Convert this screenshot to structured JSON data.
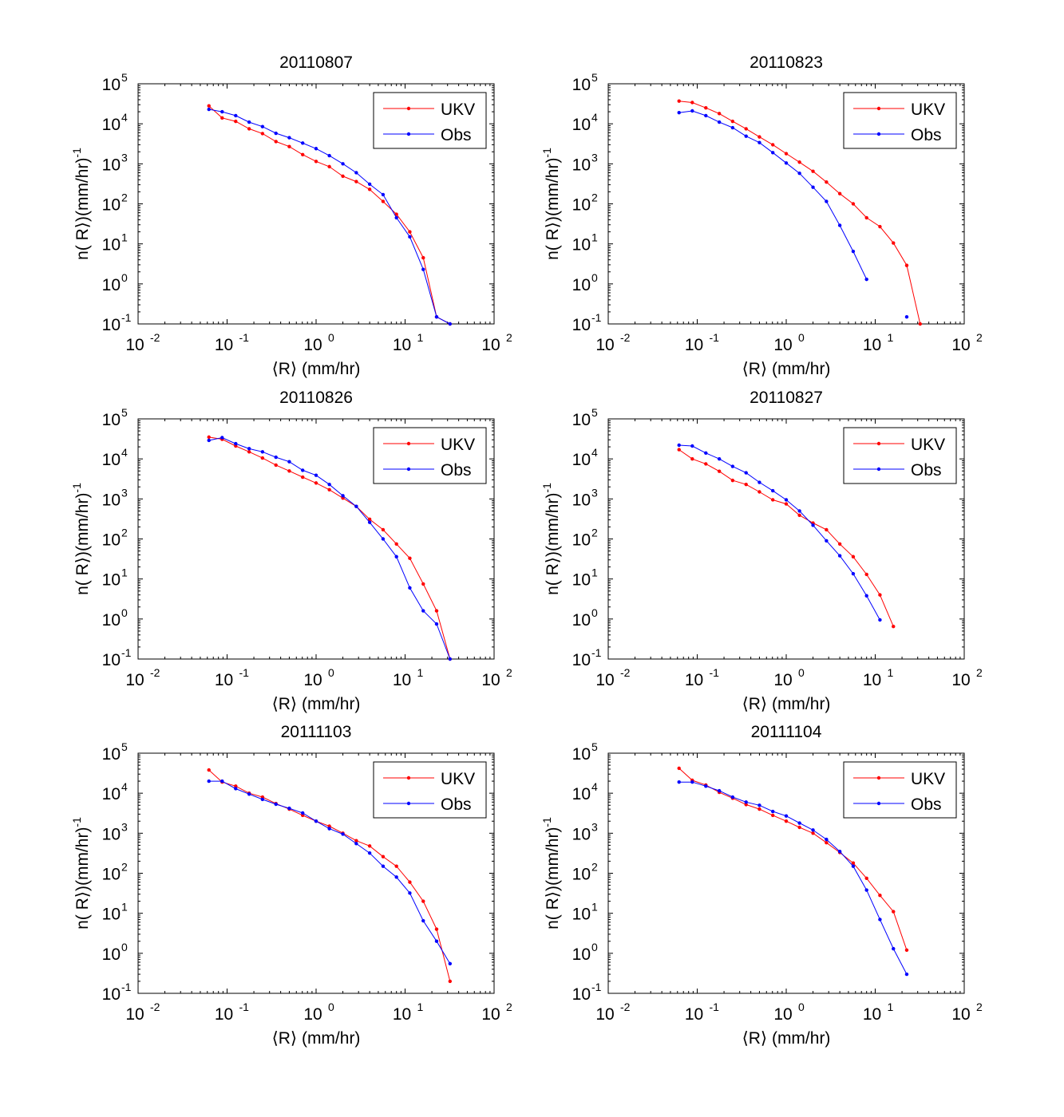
{
  "figure": {
    "x_axis_label": "⟨R⟩ (mm/hr)",
    "y_axis_label_main": "n( R⟩)(mm/hr)",
    "y_axis_label_exp": "-1",
    "x_tick_labels": [
      "10",
      "10",
      "10",
      "10",
      "10"
    ],
    "x_tick_exponents": [
      "-2",
      "-1",
      "0",
      "1",
      "2"
    ],
    "y_tick_labels": [
      "10",
      "10",
      "10",
      "10",
      "10",
      "10",
      "10"
    ],
    "y_tick_exponents": [
      "-1",
      "0",
      "1",
      "2",
      "3",
      "4",
      "5"
    ]
  },
  "colors": {
    "UKV": "#ff0000",
    "Obs": "#0000ff"
  },
  "chart_data": [
    {
      "type": "line",
      "title": "20110807",
      "xscale": "log",
      "yscale": "log",
      "xlim": [
        0.01,
        100
      ],
      "ylim": [
        0.1,
        100000
      ],
      "legend_position": "top-right",
      "series": [
        {
          "name": "UKV",
          "x": [
            0.0625,
            0.088,
            0.125,
            0.177,
            0.25,
            0.354,
            0.5,
            0.707,
            1.0,
            1.41,
            2.0,
            2.83,
            4.0,
            5.66,
            8.0,
            11.3,
            16.0,
            22.6,
            32.0
          ],
          "y": [
            28000,
            14000,
            11500,
            7500,
            5700,
            3600,
            2700,
            1700,
            1150,
            850,
            490,
            360,
            230,
            115,
            55,
            20,
            4.5,
            0.15,
            0.1
          ]
        },
        {
          "name": "Obs",
          "x": [
            0.0625,
            0.088,
            0.125,
            0.177,
            0.25,
            0.354,
            0.5,
            0.707,
            1.0,
            1.41,
            2.0,
            2.83,
            4.0,
            5.66,
            8.0,
            11.3,
            16.0,
            22.6,
            32.0
          ],
          "y": [
            23000,
            20000,
            16000,
            11000,
            8500,
            5800,
            4500,
            3300,
            2400,
            1600,
            1000,
            600,
            310,
            170,
            45,
            15,
            2.3,
            0.15,
            0.1
          ]
        }
      ]
    },
    {
      "type": "line",
      "title": "20110823",
      "xscale": "log",
      "yscale": "log",
      "xlim": [
        0.01,
        100
      ],
      "ylim": [
        0.1,
        100000
      ],
      "legend_position": "top-right",
      "series": [
        {
          "name": "UKV",
          "x": [
            0.0625,
            0.088,
            0.125,
            0.177,
            0.25,
            0.354,
            0.5,
            0.707,
            1.0,
            1.41,
            2.0,
            2.83,
            4.0,
            5.66,
            8.0,
            11.3,
            16.0,
            22.6,
            32.0
          ],
          "y": [
            37000,
            34000,
            25000,
            18000,
            11500,
            7500,
            4700,
            3000,
            1800,
            1100,
            650,
            350,
            180,
            100,
            45,
            27,
            10.5,
            2.9,
            0.1
          ]
        },
        {
          "name": "Obs",
          "x": [
            0.0625,
            0.088,
            0.125,
            0.177,
            0.25,
            0.354,
            0.5,
            0.707,
            1.0,
            1.41,
            2.0,
            2.83,
            4.0,
            5.66,
            8.0
          ],
          "y": [
            19000,
            21000,
            16000,
            11000,
            8000,
            4900,
            3400,
            1900,
            1050,
            580,
            260,
            115,
            29,
            6.5,
            1.3
          ]
        },
        {
          "name": "Obs",
          "x": [
            22.6
          ],
          "y": [
            0.15
          ]
        }
      ]
    },
    {
      "type": "line",
      "title": "20110826",
      "xscale": "log",
      "yscale": "log",
      "xlim": [
        0.01,
        100
      ],
      "ylim": [
        0.1,
        100000
      ],
      "legend_position": "top-right",
      "series": [
        {
          "name": "UKV",
          "x": [
            0.0625,
            0.088,
            0.125,
            0.177,
            0.25,
            0.354,
            0.5,
            0.707,
            1.0,
            1.41,
            2.0,
            2.83,
            4.0,
            5.66,
            8.0,
            11.3,
            16.0,
            22.6,
            32.0
          ],
          "y": [
            35000,
            31000,
            21000,
            15000,
            10500,
            7000,
            5000,
            3500,
            2500,
            1700,
            1050,
            650,
            310,
            170,
            75,
            33,
            7.5,
            1.6,
            0.1
          ]
        },
        {
          "name": "Obs",
          "x": [
            0.0625,
            0.088,
            0.125,
            0.177,
            0.25,
            0.354,
            0.5,
            0.707,
            1.0,
            1.41,
            2.0,
            2.83,
            4.0,
            5.66,
            8.0,
            11.3,
            16.0,
            22.6,
            32.0
          ],
          "y": [
            29000,
            34000,
            24000,
            18000,
            15000,
            11000,
            8500,
            5200,
            3900,
            2300,
            1200,
            650,
            260,
            100,
            36,
            6,
            1.6,
            0.75,
            0.1
          ]
        }
      ]
    },
    {
      "type": "line",
      "title": "20110827",
      "xscale": "log",
      "yscale": "log",
      "xlim": [
        0.01,
        100
      ],
      "ylim": [
        0.1,
        100000
      ],
      "legend_position": "top-right",
      "series": [
        {
          "name": "UKV",
          "x": [
            0.0625,
            0.088,
            0.125,
            0.177,
            0.25,
            0.354,
            0.5,
            0.707,
            1.0,
            1.41,
            2.0,
            2.83,
            4.0,
            5.66,
            8.0,
            11.3,
            16.0
          ],
          "y": [
            17000,
            10000,
            7500,
            4900,
            2900,
            2300,
            1500,
            950,
            750,
            390,
            250,
            170,
            75,
            36,
            13,
            4,
            0.65
          ]
        },
        {
          "name": "Obs",
          "x": [
            0.0625,
            0.088,
            0.125,
            0.177,
            0.25,
            0.354,
            0.5,
            0.707,
            1.0,
            1.41,
            2.0,
            2.83,
            4.0,
            5.66,
            8.0,
            11.3
          ],
          "y": [
            22000,
            21000,
            14000,
            10000,
            6500,
            4500,
            2600,
            1600,
            950,
            500,
            220,
            90,
            38,
            13.5,
            3.8,
            0.95
          ]
        }
      ]
    },
    {
      "type": "line",
      "title": "20111103",
      "xscale": "log",
      "yscale": "log",
      "xlim": [
        0.01,
        100
      ],
      "ylim": [
        0.1,
        100000
      ],
      "legend_position": "top-right",
      "series": [
        {
          "name": "UKV",
          "x": [
            0.0625,
            0.088,
            0.125,
            0.177,
            0.25,
            0.354,
            0.5,
            0.707,
            1.0,
            1.41,
            2.0,
            2.83,
            4.0,
            5.66,
            8.0,
            11.3,
            16.0,
            22.6,
            32.0
          ],
          "y": [
            38000,
            19000,
            15000,
            10000,
            8000,
            5500,
            4000,
            2800,
            2000,
            1500,
            1000,
            650,
            480,
            260,
            150,
            60,
            20,
            4,
            0.2
          ]
        },
        {
          "name": "Obs",
          "x": [
            0.0625,
            0.088,
            0.125,
            0.177,
            0.25,
            0.354,
            0.5,
            0.707,
            1.0,
            1.41,
            2.0,
            2.83,
            4.0,
            5.66,
            8.0,
            11.3,
            16.0,
            22.6,
            32.0
          ],
          "y": [
            20000,
            20000,
            13000,
            9500,
            7000,
            5300,
            4200,
            3200,
            2000,
            1300,
            950,
            550,
            320,
            150,
            80,
            32,
            6.5,
            2,
            0.55
          ]
        }
      ]
    },
    {
      "type": "line",
      "title": "20111104",
      "xscale": "log",
      "yscale": "log",
      "xlim": [
        0.01,
        100
      ],
      "ylim": [
        0.1,
        100000
      ],
      "legend_position": "top-right",
      "series": [
        {
          "name": "UKV",
          "x": [
            0.0625,
            0.088,
            0.125,
            0.177,
            0.25,
            0.354,
            0.5,
            0.707,
            1.0,
            1.41,
            2.0,
            2.83,
            4.0,
            5.66,
            8.0,
            11.3,
            16.0,
            22.6
          ],
          "y": [
            42000,
            21000,
            16000,
            10500,
            7500,
            5200,
            4000,
            2800,
            2000,
            1400,
            1000,
            580,
            330,
            180,
            75,
            28,
            11,
            1.2
          ]
        },
        {
          "name": "Obs",
          "x": [
            0.0625,
            0.088,
            0.125,
            0.177,
            0.25,
            0.354,
            0.5,
            0.707,
            1.0,
            1.41,
            2.0,
            2.83,
            4.0,
            5.66,
            8.0,
            11.3,
            16.0,
            22.6
          ],
          "y": [
            19000,
            19000,
            15000,
            11500,
            8000,
            6000,
            5000,
            3500,
            2700,
            1800,
            1200,
            700,
            350,
            150,
            38,
            7,
            1.3,
            0.3
          ]
        }
      ]
    }
  ]
}
